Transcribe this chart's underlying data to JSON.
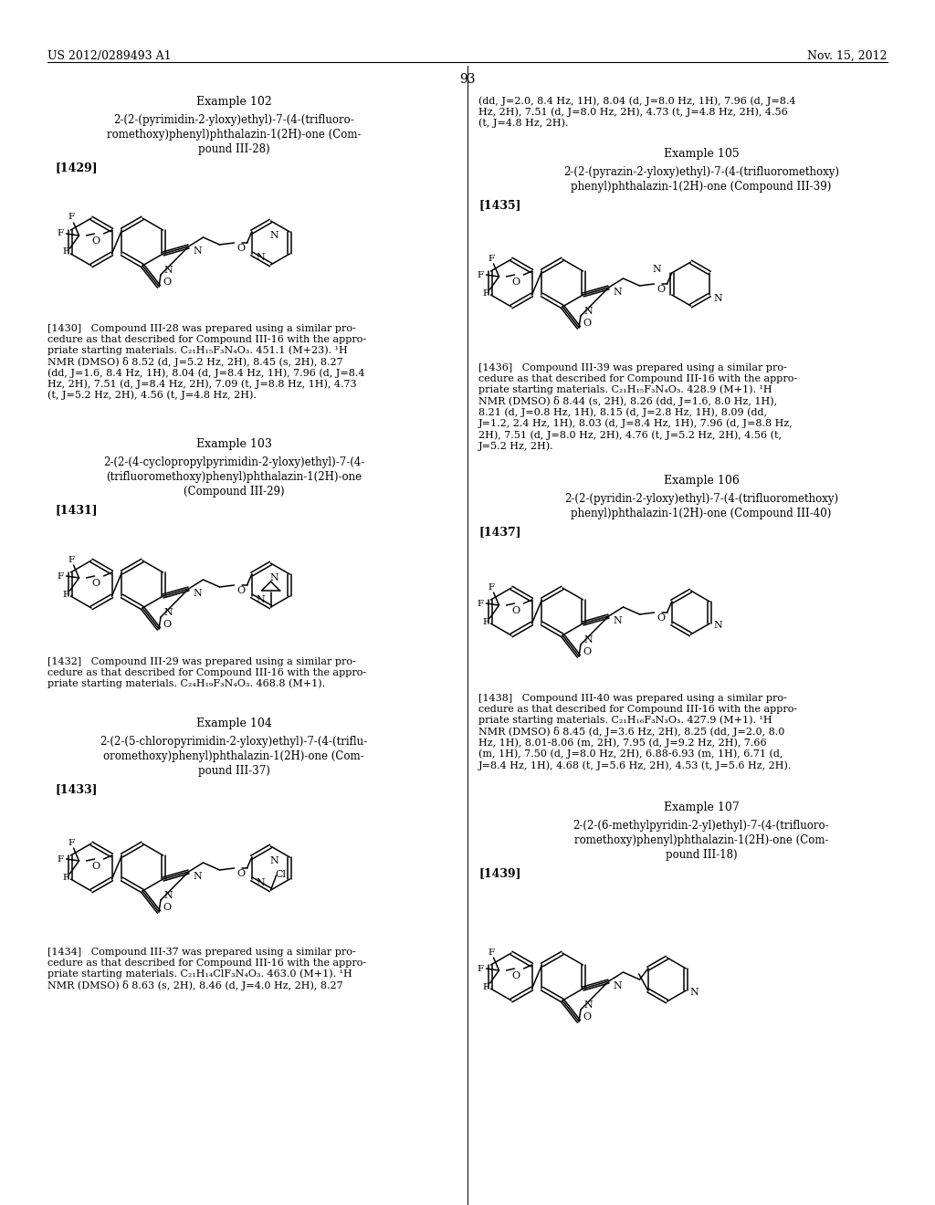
{
  "background": "#ffffff",
  "header_left": "US 2012/0289493 A1",
  "header_right": "Nov. 15, 2012",
  "page_num": "93"
}
